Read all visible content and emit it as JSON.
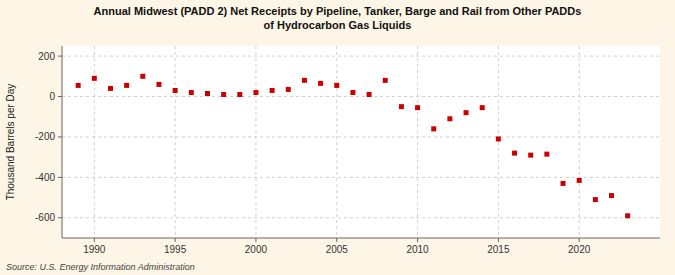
{
  "chart_data": {
    "type": "scatter",
    "title": "Annual Midwest (PADD 2) Net Receipts by Pipeline, Tanker, Barge and Rail from Other PADDs\nof Hydrocarbon Gas Liquids",
    "ylabel": "Thousand Barrels per Day",
    "source": "Source: U.S. Energy Information Administration",
    "color": "#cc0000",
    "marker": "square",
    "grid": true,
    "x": [
      1989,
      1990,
      1991,
      1992,
      1993,
      1994,
      1995,
      1996,
      1997,
      1998,
      1999,
      2000,
      2001,
      2002,
      2003,
      2004,
      2005,
      2006,
      2007,
      2008,
      2009,
      2010,
      2011,
      2012,
      2013,
      2014,
      2015,
      2016,
      2017,
      2018,
      2019,
      2020,
      2021,
      2022,
      2023
    ],
    "values": [
      55,
      90,
      40,
      55,
      100,
      60,
      30,
      20,
      15,
      10,
      10,
      20,
      30,
      35,
      80,
      65,
      55,
      20,
      10,
      80,
      -50,
      -55,
      -160,
      -110,
      -80,
      -55,
      -210,
      -280,
      -290,
      -285,
      -430,
      -415,
      -510,
      -490,
      -590
    ],
    "xlim": [
      1988,
      2025
    ],
    "ylim": [
      -700,
      250
    ],
    "xticks": [
      1990,
      1995,
      2000,
      2005,
      2010,
      2015,
      2020
    ],
    "yticks": [
      -600,
      -400,
      -200,
      0,
      200
    ]
  }
}
